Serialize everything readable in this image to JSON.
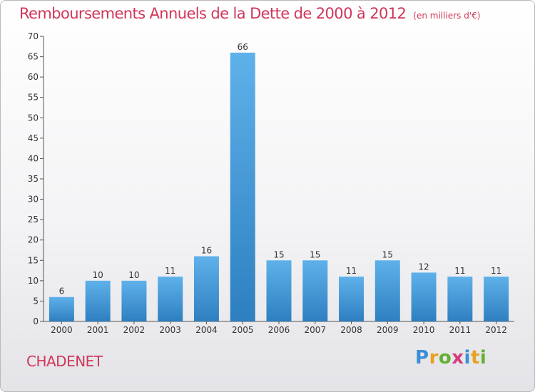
{
  "title": "Remboursements Annuels de la Dette de 2000 à 2012",
  "unit_note": "(en milliers d'€)",
  "commune": "CHADENET",
  "brand": {
    "letters": [
      "P",
      "r",
      "o",
      "x",
      "i",
      "t",
      "i"
    ],
    "colors": [
      "#3a8fd6",
      "#e8a020",
      "#62b032",
      "#d43c7a",
      "#3a8fd6",
      "#e8a020",
      "#62b032"
    ]
  },
  "colors": {
    "accent": "#d0365a",
    "bar_top": "#5fb1ea",
    "bar_bottom": "#2e7fc0"
  },
  "chart_data": {
    "type": "bar",
    "categories": [
      "2000",
      "2001",
      "2002",
      "2003",
      "2004",
      "2005",
      "2006",
      "2007",
      "2008",
      "2009",
      "2010",
      "2011",
      "2012"
    ],
    "values": [
      6,
      10,
      10,
      11,
      16,
      66,
      15,
      15,
      11,
      15,
      12,
      11,
      11
    ],
    "ylim": [
      0,
      70
    ],
    "yticks": [
      0,
      5,
      10,
      15,
      20,
      25,
      30,
      35,
      40,
      45,
      50,
      55,
      60,
      65,
      70
    ],
    "grid": false,
    "data_labels": true
  }
}
